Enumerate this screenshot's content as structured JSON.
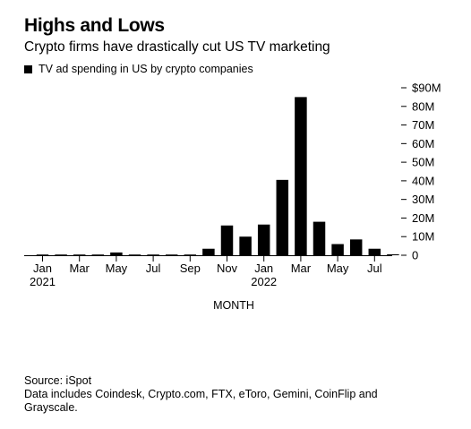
{
  "title": "Highs and Lows",
  "subtitle": "Crypto firms have drastically cut US TV marketing",
  "legend_label": "TV ad spending in US by crypto companies",
  "footer": {
    "source": "Source: iSpot",
    "note": "Data includes Coindesk, Crypto.com, FTX, eToro, Gemini, CoinFlip and Grayscale."
  },
  "chart_data": {
    "type": "bar",
    "title": "Highs and Lows",
    "subtitle": "Crypto firms have drastically cut US TV marketing",
    "xlabel": "MONTH",
    "ylabel": "",
    "series": [
      {
        "name": "TV ad spending in US by crypto companies",
        "color": "#000000",
        "values": [
          0.3,
          0.3,
          0.3,
          0.3,
          1.5,
          0.3,
          0.3,
          0.3,
          0.3,
          3.5,
          16,
          10,
          16.5,
          40.5,
          85,
          18,
          6,
          8.5,
          3.5,
          0.5
        ]
      }
    ],
    "categories": [
      "Jan 2021",
      "Feb 2021",
      "Mar 2021",
      "Apr 2021",
      "May 2021",
      "Jun 2021",
      "Jul 2021",
      "Aug 2021",
      "Sep 2021",
      "Oct 2021",
      "Nov 2021",
      "Dec 2021",
      "Jan 2022",
      "Feb 2022",
      "Mar 2022",
      "Apr 2022",
      "May 2022",
      "Jun 2022",
      "Jul 2022",
      "Aug 2022"
    ],
    "x_tick_labels": [
      {
        "index": 0,
        "label": "Jan",
        "sublabel": "2021"
      },
      {
        "index": 2,
        "label": "Mar",
        "sublabel": ""
      },
      {
        "index": 4,
        "label": "May",
        "sublabel": ""
      },
      {
        "index": 6,
        "label": "Jul",
        "sublabel": ""
      },
      {
        "index": 8,
        "label": "Sep",
        "sublabel": ""
      },
      {
        "index": 10,
        "label": "Nov",
        "sublabel": ""
      },
      {
        "index": 12,
        "label": "Jan",
        "sublabel": "2022"
      },
      {
        "index": 14,
        "label": "Mar",
        "sublabel": ""
      },
      {
        "index": 16,
        "label": "May",
        "sublabel": ""
      },
      {
        "index": 18,
        "label": "Jul",
        "sublabel": ""
      }
    ],
    "y_ticks": [
      {
        "value": 90,
        "label": "$90M"
      },
      {
        "value": 80,
        "label": "80M"
      },
      {
        "value": 70,
        "label": "70M"
      },
      {
        "value": 60,
        "label": "60M"
      },
      {
        "value": 50,
        "label": "50M"
      },
      {
        "value": 40,
        "label": "40M"
      },
      {
        "value": 30,
        "label": "30M"
      },
      {
        "value": 20,
        "label": "20M"
      },
      {
        "value": 10,
        "label": "10M"
      },
      {
        "value": 0,
        "label": "0"
      }
    ],
    "ylim": [
      0,
      90
    ],
    "y_axis_position": "right",
    "grid": false,
    "legend_position": "top-left"
  }
}
